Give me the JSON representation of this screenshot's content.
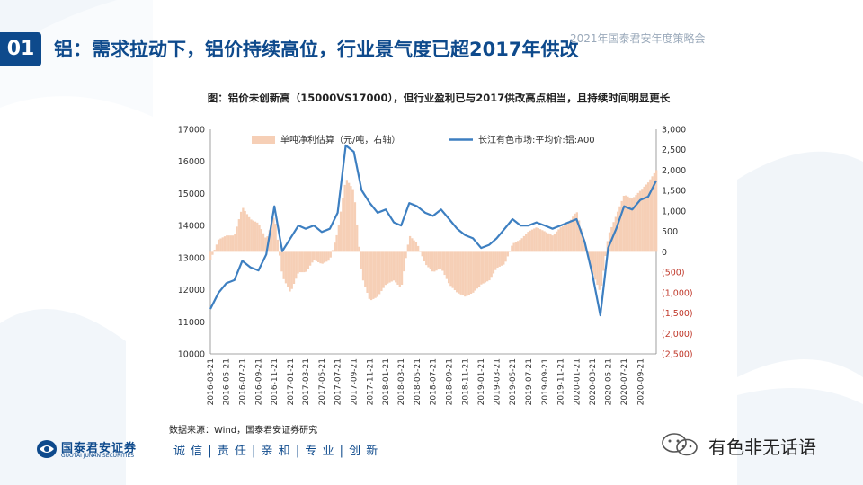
{
  "header": {
    "badge": "01",
    "title": "铝：需求拉动下，铝价持续高位，行业景气度已超2017年供改",
    "corner_text": "2021年国泰君安年度策略会"
  },
  "colors": {
    "brand": "#0e4a8c",
    "line": "#3d7fc1",
    "bar": "#f6cfb6",
    "negative_label": "#c0392b"
  },
  "chart_data": {
    "type": "line+bar",
    "title": "图：铝价未创新高（15000VS17000），但行业盈利已与2017供改高点相当，且持续时间明显更长",
    "ylim": [
      10000,
      17000
    ],
    "y2lim": [
      -2500,
      3000
    ],
    "y_ticks": [
      "17000",
      "16000",
      "15000",
      "14000",
      "13000",
      "12000",
      "11000",
      "10000"
    ],
    "y2_ticks": [
      "3,000",
      "2,500",
      "2,000",
      "1,500",
      "1,000",
      "500",
      "0",
      "(500)",
      "(1,000)",
      "(1,500)",
      "(2,000)",
      "(2,500)"
    ],
    "x_ticks": [
      "2016-03-21",
      "2016-05-21",
      "2016-07-21",
      "2016-09-21",
      "2016-11-21",
      "2017-01-21",
      "2017-03-21",
      "2017-05-21",
      "2017-07-21",
      "2017-09-21",
      "2017-11-21",
      "2018-01-21",
      "2018-03-21",
      "2018-05-21",
      "2018-07-21",
      "2018-09-21",
      "2018-11-21",
      "2019-01-21",
      "2019-03-21",
      "2019-05-21",
      "2019-07-21",
      "2019-09-21",
      "2019-11-21",
      "2020-01-21",
      "2020-03-21",
      "2020-05-21",
      "2020-07-21",
      "2020-09-21"
    ],
    "series": [
      {
        "name": "长江有色市场:平均价:铝:A00",
        "axis": "left",
        "points": [
          [
            "2016-03-21",
            11400
          ],
          [
            "2016-04-21",
            11900
          ],
          [
            "2016-05-21",
            12200
          ],
          [
            "2016-06-21",
            12300
          ],
          [
            "2016-07-21",
            12900
          ],
          [
            "2016-08-21",
            12700
          ],
          [
            "2016-09-21",
            12600
          ],
          [
            "2016-10-21",
            13100
          ],
          [
            "2016-11-21",
            14600
          ],
          [
            "2016-12-21",
            13200
          ],
          [
            "2017-01-21",
            13600
          ],
          [
            "2017-02-21",
            14000
          ],
          [
            "2017-03-21",
            13900
          ],
          [
            "2017-04-21",
            14000
          ],
          [
            "2017-05-21",
            13800
          ],
          [
            "2017-06-21",
            13900
          ],
          [
            "2017-07-21",
            14400
          ],
          [
            "2017-08-21",
            16500
          ],
          [
            "2017-09-21",
            16300
          ],
          [
            "2017-10-21",
            15100
          ],
          [
            "2017-11-21",
            14700
          ],
          [
            "2017-12-21",
            14400
          ],
          [
            "2018-01-21",
            14500
          ],
          [
            "2018-02-21",
            14100
          ],
          [
            "2018-03-21",
            14000
          ],
          [
            "2018-04-21",
            14700
          ],
          [
            "2018-05-21",
            14600
          ],
          [
            "2018-06-21",
            14400
          ],
          [
            "2018-07-21",
            14300
          ],
          [
            "2018-08-21",
            14500
          ],
          [
            "2018-09-21",
            14200
          ],
          [
            "2018-10-21",
            13900
          ],
          [
            "2018-11-21",
            13700
          ],
          [
            "2018-12-21",
            13600
          ],
          [
            "2019-01-21",
            13300
          ],
          [
            "2019-02-21",
            13400
          ],
          [
            "2019-03-21",
            13600
          ],
          [
            "2019-04-21",
            13900
          ],
          [
            "2019-05-21",
            14200
          ],
          [
            "2019-06-21",
            14000
          ],
          [
            "2019-07-21",
            14000
          ],
          [
            "2019-08-21",
            14100
          ],
          [
            "2019-09-21",
            14000
          ],
          [
            "2019-10-21",
            13900
          ],
          [
            "2019-11-21",
            14000
          ],
          [
            "2019-12-21",
            14100
          ],
          [
            "2020-01-21",
            14200
          ],
          [
            "2020-02-21",
            13500
          ],
          [
            "2020-03-21",
            12500
          ],
          [
            "2020-04-21",
            11200
          ],
          [
            "2020-05-21",
            13300
          ],
          [
            "2020-06-21",
            13900
          ],
          [
            "2020-07-21",
            14600
          ],
          [
            "2020-08-21",
            14500
          ],
          [
            "2020-09-21",
            14800
          ],
          [
            "2020-10-21",
            14900
          ],
          [
            "2020-11-21",
            15400
          ]
        ]
      },
      {
        "name": "单吨净利估算（元/吨，右轴）",
        "axis": "right",
        "points": [
          [
            "2016-03-21",
            -200
          ],
          [
            "2016-04-21",
            300
          ],
          [
            "2016-05-21",
            400
          ],
          [
            "2016-06-21",
            400
          ],
          [
            "2016-07-21",
            1100
          ],
          [
            "2016-08-21",
            800
          ],
          [
            "2016-09-21",
            700
          ],
          [
            "2016-10-21",
            300
          ],
          [
            "2016-11-21",
            900
          ],
          [
            "2016-12-21",
            -600
          ],
          [
            "2017-01-21",
            -1000
          ],
          [
            "2017-02-21",
            -500
          ],
          [
            "2017-03-21",
            -500
          ],
          [
            "2017-04-21",
            -200
          ],
          [
            "2017-05-21",
            -300
          ],
          [
            "2017-06-21",
            -200
          ],
          [
            "2017-07-21",
            500
          ],
          [
            "2017-08-21",
            1800
          ],
          [
            "2017-09-21",
            1500
          ],
          [
            "2017-10-21",
            -600
          ],
          [
            "2017-11-21",
            -1200
          ],
          [
            "2017-12-21",
            -1100
          ],
          [
            "2018-01-21",
            -800
          ],
          [
            "2018-02-21",
            -700
          ],
          [
            "2018-03-21",
            -900
          ],
          [
            "2018-04-21",
            400
          ],
          [
            "2018-05-21",
            200
          ],
          [
            "2018-06-21",
            -300
          ],
          [
            "2018-07-21",
            -500
          ],
          [
            "2018-08-21",
            -400
          ],
          [
            "2018-09-21",
            -800
          ],
          [
            "2018-10-21",
            -1000
          ],
          [
            "2018-11-21",
            -1100
          ],
          [
            "2018-12-21",
            -1000
          ],
          [
            "2019-01-21",
            -800
          ],
          [
            "2019-02-21",
            -700
          ],
          [
            "2019-03-21",
            -400
          ],
          [
            "2019-04-21",
            -300
          ],
          [
            "2019-05-21",
            200
          ],
          [
            "2019-06-21",
            300
          ],
          [
            "2019-07-21",
            500
          ],
          [
            "2019-08-21",
            600
          ],
          [
            "2019-09-21",
            500
          ],
          [
            "2019-10-21",
            400
          ],
          [
            "2019-11-21",
            600
          ],
          [
            "2019-12-21",
            700
          ],
          [
            "2020-01-21",
            1000
          ],
          [
            "2020-02-21",
            200
          ],
          [
            "2020-03-21",
            -500
          ],
          [
            "2020-04-21",
            -1000
          ],
          [
            "2020-05-21",
            400
          ],
          [
            "2020-06-21",
            900
          ],
          [
            "2020-07-21",
            1400
          ],
          [
            "2020-08-21",
            1300
          ],
          [
            "2020-09-21",
            1500
          ],
          [
            "2020-10-21",
            1700
          ],
          [
            "2020-11-21",
            2000
          ]
        ]
      }
    ],
    "legend_position": "top",
    "grid": false,
    "source": "数据来源：Wind，国泰君安证券研究"
  },
  "footer": {
    "logo_cn": "国泰君安证券",
    "logo_en": "GUOTAI JUNAN SECURITIES",
    "slogan": "诚 信 | 责 任 | 亲 和 | 专 业 | 创 新",
    "wechat_name": "有色非无话语"
  }
}
